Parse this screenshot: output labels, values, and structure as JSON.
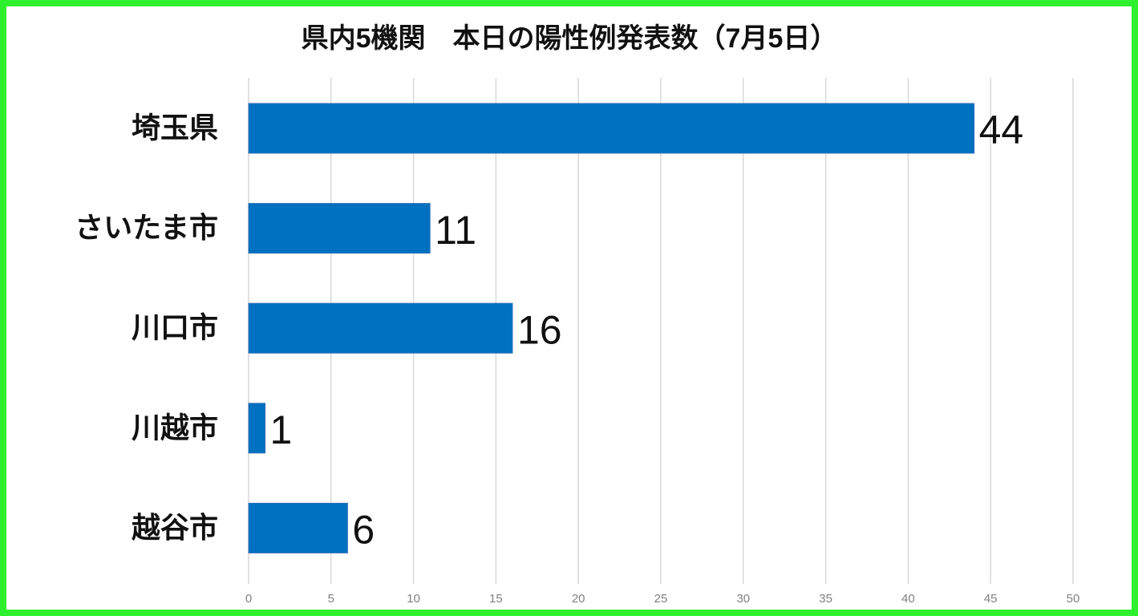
{
  "chart_data": {
    "type": "bar",
    "orientation": "horizontal",
    "title": "県内5機関　本日の陽性例発表数（7月5日）",
    "categories": [
      "埼玉県",
      "さいたま市",
      "川口市",
      "川越市",
      "越谷市"
    ],
    "values": [
      44,
      11,
      16,
      1,
      6
    ],
    "color": "#0070c0",
    "xlim": [
      0,
      50
    ],
    "xticks": [
      0,
      5,
      10,
      15,
      20,
      25,
      30,
      35,
      40,
      45,
      50
    ],
    "grid": true,
    "border_color": "#2ef02e"
  }
}
